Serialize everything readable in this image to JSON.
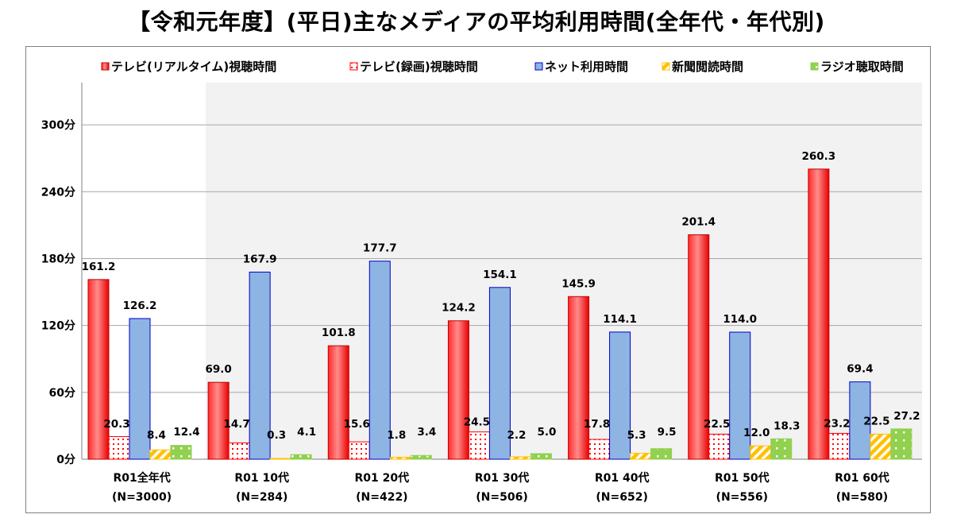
{
  "title": "【令和元年度】(平日)主なメディアの平均利用時間(全年代・年代別)",
  "chart_data": {
    "type": "bar",
    "categories": [
      {
        "line1": "R01全年代",
        "line2": "(N=3000)"
      },
      {
        "line1": "R01 10代",
        "line2": "(N=284)"
      },
      {
        "line1": "R01 20代",
        "line2": "(N=422)"
      },
      {
        "line1": "R01 30代",
        "line2": "(N=506)"
      },
      {
        "line1": "R01 40代",
        "line2": "(N=652)"
      },
      {
        "line1": "R01 50代",
        "line2": "(N=556)"
      },
      {
        "line1": "R01 60代",
        "line2": "(N=580)"
      }
    ],
    "series": [
      {
        "name": "テレビ(リアルタイム)視聴時間",
        "color": "#ff0000",
        "pattern": "solid-red",
        "values": [
          161.2,
          69.0,
          101.8,
          124.2,
          145.9,
          201.4,
          260.3
        ],
        "labels": [
          "161.2",
          "69.0",
          "101.8",
          "124.2",
          "145.9",
          "201.4",
          "260.3"
        ]
      },
      {
        "name": "テレビ(録画)視聴時間",
        "color": "#ff0000",
        "pattern": "dotted-red",
        "values": [
          20.3,
          14.7,
          15.6,
          24.5,
          17.8,
          22.5,
          23.2
        ],
        "labels": [
          "20.3",
          "14.7",
          "15.6",
          "24.5",
          "17.8",
          "22.5",
          "23.2"
        ]
      },
      {
        "name": "ネット利用時間",
        "color": "#8db4e2",
        "pattern": "solid-blue",
        "values": [
          126.2,
          167.9,
          177.7,
          154.1,
          114.1,
          114.0,
          69.4
        ],
        "labels": [
          "126.2",
          "167.9",
          "177.7",
          "154.1",
          "114.1",
          "114.0",
          "69.4"
        ]
      },
      {
        "name": "新聞閲読時間",
        "color": "#ffc000",
        "pattern": "striped-orange",
        "values": [
          8.4,
          0.3,
          1.8,
          2.2,
          5.3,
          12.0,
          22.5
        ],
        "labels": [
          "8.4",
          "0.3",
          "1.8",
          "2.2",
          "5.3",
          "12.0",
          "22.5"
        ]
      },
      {
        "name": "ラジオ聴取時間",
        "color": "#92d050",
        "pattern": "solid-green",
        "values": [
          12.4,
          4.1,
          3.4,
          5.0,
          9.5,
          18.3,
          27.2
        ],
        "labels": [
          "12.4",
          "4.1",
          "3.4",
          "5.0",
          "9.5",
          "18.3",
          "27.2"
        ]
      }
    ],
    "yticks": [
      0,
      60,
      120,
      180,
      240,
      300
    ],
    "ytick_labels": [
      "0分",
      "60分",
      "120分",
      "180分",
      "240分",
      "300分"
    ],
    "ylim": [
      0,
      345
    ],
    "grid": true,
    "legend": "top"
  }
}
